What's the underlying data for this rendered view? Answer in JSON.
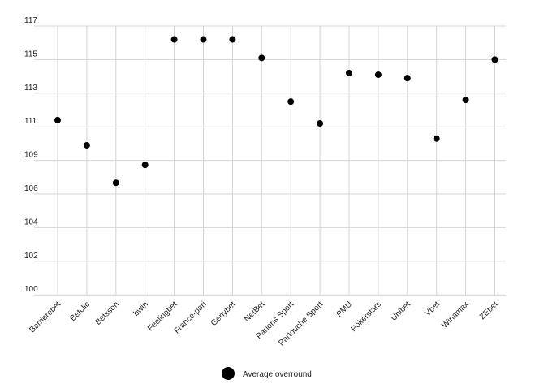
{
  "chart_data": {
    "type": "scatter",
    "title": "",
    "xlabel": "",
    "ylabel": "",
    "y_ticks": [
      "100",
      "102",
      "104",
      "106",
      "109",
      "111",
      "113",
      "115",
      "117"
    ],
    "categories": [
      "Barrierebet",
      "Betclic",
      "Betsson",
      "bwin",
      "Feelingbet",
      "France-pari",
      "Genybet",
      "NetBet",
      "Parions Sport",
      "Partouche Sport",
      "PMU",
      "Pokerstars",
      "Unibet",
      "Vbet",
      "Winamax",
      "ZEbet"
    ],
    "series": [
      {
        "name": "Average overround",
        "values": [
          111.4,
          109.9,
          107.0,
          108.6,
          116.2,
          116.2,
          116.2,
          115.1,
          112.5,
          111.2,
          114.2,
          114.1,
          113.9,
          110.3,
          112.6,
          115.0
        ]
      }
    ],
    "grid": true,
    "legend_position": "bottom-center",
    "marker_color": "#000000"
  }
}
